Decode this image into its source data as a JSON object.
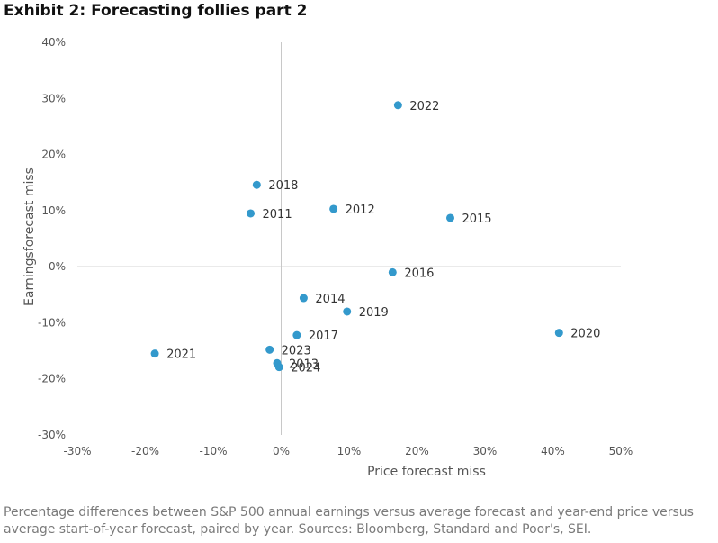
{
  "title": "Exhibit 2: Forecasting follies part 2",
  "caption": "Percentage differences between S&P 500 annual earnings versus average forecast and year-end price versus average start-of-year forecast, paired by year. Sources: Bloomberg, Standard and Poor's, SEI.",
  "chart_data": {
    "type": "scatter",
    "title": "Exhibit 2: Forecasting follies part 2",
    "xlabel": "Price forecast miss",
    "ylabel": "Earningsforecast miss",
    "xlim": [
      -30,
      50
    ],
    "ylim": [
      -30,
      40
    ],
    "x_ticks": [
      -30,
      -20,
      -10,
      0,
      10,
      20,
      30,
      40,
      50
    ],
    "y_ticks": [
      40,
      30,
      20,
      10,
      0,
      -10,
      -20,
      -30
    ],
    "x_tick_labels": [
      "-30%",
      "-20%",
      "-10%",
      "0%",
      "10%",
      "20%",
      "30%",
      "40%",
      "50%"
    ],
    "y_tick_labels": [
      "40%",
      "30%",
      "20%",
      "10%",
      "0%",
      "-10%",
      "-20%",
      "-30%"
    ],
    "marker_color": "#3399cc",
    "points": [
      {
        "label": "2011",
        "x": -4.5,
        "y": 9.5
      },
      {
        "label": "2012",
        "x": 7.7,
        "y": 10.3
      },
      {
        "label": "2013",
        "x": -0.6,
        "y": -17.2
      },
      {
        "label": "2014",
        "x": 3.3,
        "y": -5.6
      },
      {
        "label": "2015",
        "x": 24.9,
        "y": 8.7
      },
      {
        "label": "2016",
        "x": 16.4,
        "y": -1.0
      },
      {
        "label": "2017",
        "x": 2.3,
        "y": -12.2
      },
      {
        "label": "2018",
        "x": -3.6,
        "y": 14.6
      },
      {
        "label": "2019",
        "x": 9.7,
        "y": -8.0
      },
      {
        "label": "2020",
        "x": 40.9,
        "y": -11.8
      },
      {
        "label": "2021",
        "x": -18.6,
        "y": -15.5
      },
      {
        "label": "2022",
        "x": 17.2,
        "y": 28.8
      },
      {
        "label": "2023",
        "x": -1.7,
        "y": -14.8
      },
      {
        "label": "2024",
        "x": -0.3,
        "y": -17.9
      }
    ]
  }
}
